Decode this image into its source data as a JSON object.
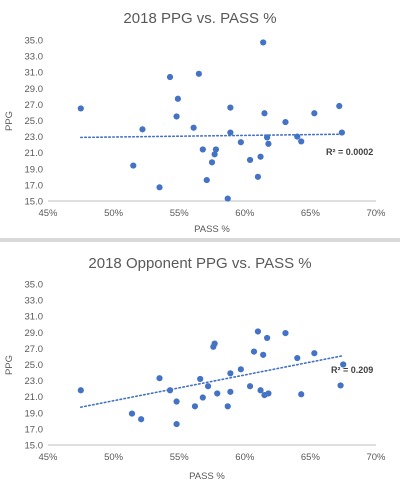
{
  "chart_data": [
    {
      "type": "scatter",
      "title": "2018 PPG vs. PASS %",
      "xlabel": "PASS %",
      "ylabel": "PPG",
      "xlim": [
        0.45,
        0.7
      ],
      "ylim": [
        15.0,
        35.0
      ],
      "x_ticks": [
        "45%",
        "50%",
        "55%",
        "60%",
        "65%",
        "70%"
      ],
      "y_ticks": [
        "15.0",
        "17.0",
        "19.0",
        "21.0",
        "23.0",
        "25.0",
        "27.0",
        "29.0",
        "31.0",
        "33.0",
        "35.0"
      ],
      "grid": false,
      "trendline": {
        "type": "linear",
        "style": "dotted",
        "x_range": [
          0.475,
          0.675
        ],
        "y_range": [
          22.9,
          23.3
        ]
      },
      "r_squared_label": "R² = 0.0002",
      "points": [
        {
          "x": 0.475,
          "y": 26.5
        },
        {
          "x": 0.515,
          "y": 19.4
        },
        {
          "x": 0.522,
          "y": 23.9
        },
        {
          "x": 0.535,
          "y": 16.7
        },
        {
          "x": 0.543,
          "y": 30.4
        },
        {
          "x": 0.548,
          "y": 25.5
        },
        {
          "x": 0.549,
          "y": 27.7
        },
        {
          "x": 0.561,
          "y": 24.1
        },
        {
          "x": 0.565,
          "y": 30.8
        },
        {
          "x": 0.568,
          "y": 21.4
        },
        {
          "x": 0.571,
          "y": 17.6
        },
        {
          "x": 0.575,
          "y": 19.8
        },
        {
          "x": 0.577,
          "y": 20.8
        },
        {
          "x": 0.578,
          "y": 21.4
        },
        {
          "x": 0.587,
          "y": 15.3
        },
        {
          "x": 0.589,
          "y": 26.6
        },
        {
          "x": 0.589,
          "y": 23.5
        },
        {
          "x": 0.597,
          "y": 22.3
        },
        {
          "x": 0.604,
          "y": 20.1
        },
        {
          "x": 0.61,
          "y": 18.0
        },
        {
          "x": 0.612,
          "y": 20.5
        },
        {
          "x": 0.614,
          "y": 34.7
        },
        {
          "x": 0.615,
          "y": 25.9
        },
        {
          "x": 0.617,
          "y": 22.9
        },
        {
          "x": 0.618,
          "y": 22.1
        },
        {
          "x": 0.631,
          "y": 24.8
        },
        {
          "x": 0.64,
          "y": 23.0
        },
        {
          "x": 0.643,
          "y": 22.4
        },
        {
          "x": 0.653,
          "y": 25.9
        },
        {
          "x": 0.672,
          "y": 26.8
        },
        {
          "x": 0.674,
          "y": 23.5
        }
      ]
    },
    {
      "type": "scatter",
      "title": "2018 Opponent PPG vs. PASS %",
      "xlabel": "PASS %",
      "ylabel": "PPG",
      "xlim": [
        0.45,
        0.7
      ],
      "ylim": [
        15.0,
        35.0
      ],
      "x_ticks": [
        "45%",
        "50%",
        "55%",
        "60%",
        "65%",
        "70%"
      ],
      "y_ticks": [
        "15.0",
        "17.0",
        "19.0",
        "21.0",
        "23.0",
        "25.0",
        "27.0",
        "29.0",
        "31.0",
        "33.0",
        "35.0"
      ],
      "grid": false,
      "trendline": {
        "type": "linear",
        "style": "dotted",
        "x_range": [
          0.475,
          0.675
        ],
        "y_range": [
          19.7,
          26.1
        ]
      },
      "r_squared_label": "R² = 0.209",
      "points": [
        {
          "x": 0.475,
          "y": 21.8
        },
        {
          "x": 0.514,
          "y": 18.9
        },
        {
          "x": 0.521,
          "y": 18.2
        },
        {
          "x": 0.535,
          "y": 23.3
        },
        {
          "x": 0.543,
          "y": 21.8
        },
        {
          "x": 0.548,
          "y": 20.4
        },
        {
          "x": 0.548,
          "y": 17.6
        },
        {
          "x": 0.562,
          "y": 19.8
        },
        {
          "x": 0.566,
          "y": 23.2
        },
        {
          "x": 0.568,
          "y": 20.9
        },
        {
          "x": 0.572,
          "y": 22.3
        },
        {
          "x": 0.576,
          "y": 27.2
        },
        {
          "x": 0.577,
          "y": 27.6
        },
        {
          "x": 0.579,
          "y": 21.4
        },
        {
          "x": 0.587,
          "y": 19.8
        },
        {
          "x": 0.589,
          "y": 23.9
        },
        {
          "x": 0.589,
          "y": 21.6
        },
        {
          "x": 0.597,
          "y": 24.4
        },
        {
          "x": 0.604,
          "y": 22.3
        },
        {
          "x": 0.607,
          "y": 26.6
        },
        {
          "x": 0.61,
          "y": 29.1
        },
        {
          "x": 0.612,
          "y": 21.8
        },
        {
          "x": 0.614,
          "y": 26.2
        },
        {
          "x": 0.615,
          "y": 21.2
        },
        {
          "x": 0.617,
          "y": 28.3
        },
        {
          "x": 0.618,
          "y": 21.4
        },
        {
          "x": 0.631,
          "y": 28.9
        },
        {
          "x": 0.64,
          "y": 25.8
        },
        {
          "x": 0.643,
          "y": 21.3
        },
        {
          "x": 0.653,
          "y": 26.4
        },
        {
          "x": 0.673,
          "y": 22.4
        },
        {
          "x": 0.675,
          "y": 25.0
        }
      ]
    }
  ],
  "colors": {
    "point": "#4472c4",
    "trendline": "#4472c4",
    "axis_line": "#bfbfbf",
    "text": "#595959"
  }
}
